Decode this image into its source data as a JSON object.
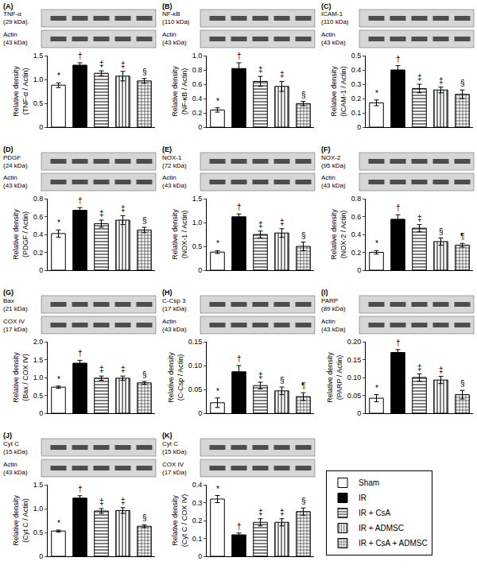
{
  "chart_data": [
    {
      "type": "bar",
      "panel": "(A)",
      "blots": [
        [
          "TNF-α",
          "(29 kDa)"
        ],
        [
          "Actin",
          "(43 kDa)"
        ]
      ],
      "y_label": [
        "Relative density",
        "(TNF-α / Actin)"
      ],
      "categories": [
        "Sham",
        "IR",
        "IR + CsA",
        "IR + ADMSC",
        "IR + CsA + ADMSC"
      ],
      "values": [
        0.88,
        1.3,
        1.13,
        1.07,
        0.97
      ],
      "errors": [
        0.05,
        0.05,
        0.05,
        0.1,
        0.05
      ],
      "significance": [
        "*",
        "†",
        "‡",
        "‡",
        "§"
      ],
      "ylim": [
        0,
        1.5
      ],
      "yticks": [
        0,
        0.5,
        {
          "value": 1,
          "label": "1.0"
        },
        1.5
      ],
      "grid": false,
      "tick_labels": "y"
    },
    {
      "type": "bar",
      "panel": "(B)",
      "blots": [
        [
          "NF-κB",
          "(110 kDa)"
        ],
        [
          "Actin",
          "(43 kDa)"
        ]
      ],
      "y_label": [
        "Relative density",
        "(NF-κB / Actin)"
      ],
      "categories": [
        "Sham",
        "IR",
        "IR + CsA",
        "IR + ADMSC",
        "IR + CsA + ADMSC"
      ],
      "values": [
        0.24,
        0.82,
        0.64,
        0.57,
        0.33
      ],
      "errors": [
        0.03,
        0.08,
        0.07,
        0.07,
        0.03
      ],
      "significance": [
        "*",
        "†",
        "‡",
        "‡",
        "§"
      ],
      "ylim": [
        0,
        1.0
      ],
      "yticks": [
        0,
        0.2,
        0.4,
        0.6,
        0.8,
        {
          "value": 1,
          "label": "1.0"
        }
      ],
      "grid": false,
      "tick_labels": "y"
    },
    {
      "type": "bar",
      "panel": "(C)",
      "blots": [
        [
          "ICAM-1",
          "(110 kDa)"
        ],
        [
          "Actin",
          "(43 kDa)"
        ]
      ],
      "y_label": [
        "Relative density",
        "(ICAM-1 / Actin)"
      ],
      "categories": [
        "Sham",
        "IR",
        "IR + CsA",
        "IR + ADMSC",
        "IR + CsA + ADMSC"
      ],
      "values": [
        0.17,
        0.4,
        0.27,
        0.26,
        0.23
      ],
      "errors": [
        0.02,
        0.03,
        0.03,
        0.02,
        0.03
      ],
      "significance": [
        "*",
        "†",
        "‡",
        "‡",
        "§"
      ],
      "ylim": [
        0,
        0.5
      ],
      "yticks": [
        0,
        0.1,
        0.2,
        0.3,
        0.4,
        0.5
      ],
      "grid": false,
      "tick_labels": "y"
    },
    {
      "type": "bar",
      "panel": "(D)",
      "blots": [
        [
          "PDGF",
          "(24 kDa)"
        ],
        [
          "Actin",
          "(43 kDa)"
        ]
      ],
      "y_label": [
        "Relative density",
        "(PDGF / Actin)"
      ],
      "categories": [
        "Sham",
        "IR",
        "IR + CsA",
        "IR + ADMSC",
        "IR + CsA + ADMSC"
      ],
      "values": [
        0.41,
        0.67,
        0.52,
        0.56,
        0.45
      ],
      "errors": [
        0.04,
        0.03,
        0.04,
        0.05,
        0.03
      ],
      "significance": [
        "*",
        "†",
        "‡",
        "‡",
        "§"
      ],
      "ylim": [
        0,
        0.8
      ],
      "yticks": [
        0,
        0.2,
        0.4,
        0.6,
        0.8
      ],
      "grid": false,
      "tick_labels": "y"
    },
    {
      "type": "bar",
      "panel": "(E)",
      "blots": [
        [
          "NOX-1",
          "(72 kDa)"
        ],
        [
          "Actin",
          "(43 kDa)"
        ]
      ],
      "y_label": [
        "Relative density",
        "(NOX-1 / Actin)"
      ],
      "categories": [
        "Sham",
        "IR",
        "IR + CsA",
        "IR + ADMSC",
        "IR + CsA + ADMSC"
      ],
      "values": [
        0.38,
        1.12,
        0.75,
        0.78,
        0.5
      ],
      "errors": [
        0.03,
        0.06,
        0.07,
        0.09,
        0.09
      ],
      "significance": [
        "*",
        "†",
        "‡",
        "‡",
        "§"
      ],
      "ylim": [
        0,
        1.5
      ],
      "yticks": [
        0,
        0.5,
        {
          "value": 1,
          "label": "1.0"
        },
        1.5
      ],
      "grid": false,
      "tick_labels": "y"
    },
    {
      "type": "bar",
      "panel": "(F)",
      "blots": [
        [
          "NOX-2",
          "(95 kDa)"
        ],
        [
          "Actin",
          "(43 kDa)"
        ]
      ],
      "y_label": [
        "Relative density",
        "(NOX-2 / Actin)"
      ],
      "categories": [
        "Sham",
        "IR",
        "IR + CsA",
        "IR + ADMSC",
        "IR + CsA + ADMSC"
      ],
      "values": [
        0.2,
        0.57,
        0.47,
        0.32,
        0.28
      ],
      "errors": [
        0.02,
        0.05,
        0.04,
        0.04,
        0.02
      ],
      "significance": [
        "*",
        "†",
        "‡",
        "§",
        "¶"
      ],
      "ylim": [
        0,
        0.8
      ],
      "yticks": [
        0,
        0.2,
        0.4,
        0.6,
        0.8
      ],
      "grid": false,
      "tick_labels": "y"
    },
    {
      "type": "bar",
      "panel": "(G)",
      "blots": [
        [
          "Bax",
          "(21 kDa)"
        ],
        [
          "COX IV",
          "(17 kDa)"
        ]
      ],
      "y_label": [
        "Relative density",
        "(Bax / COX IV)"
      ],
      "categories": [
        "Sham",
        "IR",
        "IR + CsA",
        "IR + ADMSC",
        "IR + CsA + ADMSC"
      ],
      "values": [
        0.73,
        1.4,
        0.98,
        0.98,
        0.85
      ],
      "errors": [
        0.03,
        0.08,
        0.06,
        0.06,
        0.04
      ],
      "significance": [
        "*",
        "†",
        "‡",
        "‡",
        "§"
      ],
      "ylim": [
        0,
        2.0
      ],
      "yticks": [
        0,
        0.5,
        {
          "value": 1,
          "label": "1.0"
        },
        1.5,
        {
          "value": 2,
          "label": "2.0"
        }
      ],
      "grid": false,
      "tick_labels": "y"
    },
    {
      "type": "bar",
      "panel": "(H)",
      "blots": [
        [
          "C-Csp 3",
          "(17 kDa)"
        ],
        [
          "Actin",
          "(43 kDa)"
        ]
      ],
      "y_label": [
        "Relative density",
        "(C-Csp / Actin)"
      ],
      "categories": [
        "Sham",
        "IR",
        "IR + CsA",
        "IR + ADMSC",
        "IR + CsA + ADMSC"
      ],
      "values": [
        0.022,
        0.087,
        0.058,
        0.047,
        0.035
      ],
      "errors": [
        0.01,
        0.013,
        0.007,
        0.008,
        0.008
      ],
      "significance": [
        "*",
        "†",
        "‡",
        "§",
        "¶"
      ],
      "ylim": [
        0,
        0.15
      ],
      "yticks": [
        0,
        0.05,
        {
          "value": 0.1,
          "label": "0.10"
        },
        0.15
      ],
      "grid": false,
      "tick_labels": "y"
    },
    {
      "type": "bar",
      "panel": "(I)",
      "blots": [
        [
          "PARP",
          "(89 kDa)"
        ],
        [
          "Actin",
          "(43 kDa)"
        ]
      ],
      "y_label": [
        "Relative density",
        "(PARP / Actin)"
      ],
      "categories": [
        "Sham",
        "IR",
        "IR + CsA",
        "IR + ADMSC",
        "IR + CsA + ADMSC"
      ],
      "values": [
        0.042,
        0.17,
        0.1,
        0.093,
        0.052
      ],
      "errors": [
        0.01,
        0.008,
        0.01,
        0.01,
        0.012
      ],
      "significance": [
        "*",
        "†",
        "‡",
        "‡",
        "§"
      ],
      "ylim": [
        0,
        0.2
      ],
      "yticks": [
        0,
        0.05,
        {
          "value": 0.1,
          "label": "0.10"
        },
        0.15,
        {
          "value": 0.2,
          "label": "0.20"
        }
      ],
      "grid": false,
      "tick_labels": "y"
    },
    {
      "type": "bar",
      "panel": "(J)",
      "blots": [
        [
          "Cyt C",
          "(15 kDa)"
        ],
        [
          "Actin",
          "(43 kDa)"
        ]
      ],
      "y_label": [
        "Relative density",
        "(Cyt C / Actin)"
      ],
      "categories": [
        "Sham",
        "IR",
        "IR + CsA",
        "IR + ADMSC",
        "IR + CsA + ADMSC"
      ],
      "values": [
        0.53,
        1.22,
        0.95,
        0.96,
        0.63
      ],
      "errors": [
        0.02,
        0.05,
        0.05,
        0.06,
        0.03
      ],
      "significance": [
        "*",
        "†",
        "‡",
        "‡",
        "§"
      ],
      "ylim": [
        0,
        1.5
      ],
      "yticks": [
        0,
        0.5,
        {
          "value": 1,
          "label": "1.0"
        },
        1.5
      ],
      "grid": false,
      "tick_labels": "y"
    },
    {
      "type": "bar",
      "panel": "(K)",
      "blots": [
        [
          "Cyt C",
          "(15 kDa)"
        ],
        [
          "COX IV",
          "(17 kDa)"
        ]
      ],
      "y_label": [
        "Relative density",
        "(Cyt C / COX IV)"
      ],
      "categories": [
        "Sham",
        "IR",
        "IR + CsA",
        "IR + ADMSC",
        "IR + CsA + ADMSC"
      ],
      "values": [
        0.32,
        0.12,
        0.19,
        0.19,
        0.25
      ],
      "errors": [
        0.02,
        0.01,
        0.02,
        0.02,
        0.02
      ],
      "significance": [
        "*",
        "†",
        "‡",
        "‡",
        "§"
      ],
      "ylim": [
        0,
        0.4
      ],
      "yticks": [
        0,
        0.1,
        0.2,
        0.3,
        0.4
      ],
      "grid": false,
      "tick_labels": "y"
    }
  ],
  "groups": [
    {
      "name": "Sham",
      "color": "#ffffff",
      "marker": "none"
    },
    {
      "name": "IR",
      "color": "#000000",
      "marker": "solid"
    },
    {
      "name": "IR + CsA",
      "color": "#ffffff",
      "marker": "horizontal"
    },
    {
      "name": "IR + ADMSC",
      "color": "#ffffff",
      "marker": "vertical"
    },
    {
      "name": "IR + CsA + ADMSC",
      "color": "#ffffff",
      "marker": "grid"
    }
  ],
  "legend": "lower right"
}
